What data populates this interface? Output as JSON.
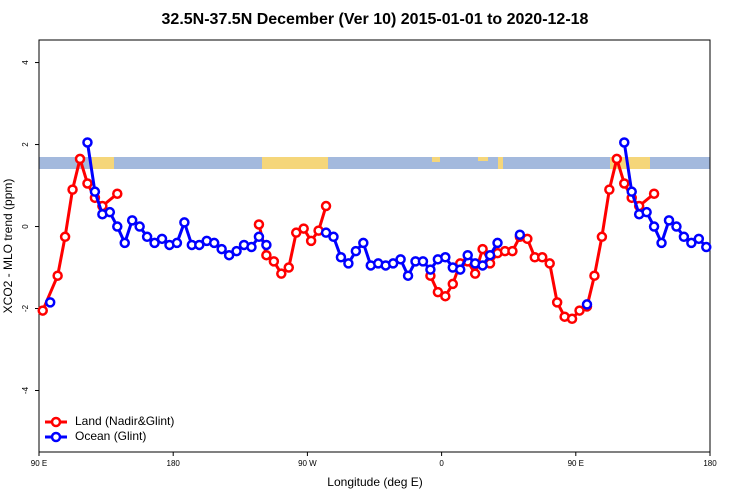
{
  "chart_data": {
    "type": "line",
    "title": "32.5N-37.5N December (Ver 10)   2015-01-01 to 2020-12-18",
    "x_label": "Longitude (deg E)",
    "y_label": "XCO2 - MLO trend (ppm)",
    "xlim": [
      90,
      540
    ],
    "ylim": [
      -5.5,
      4.55
    ],
    "xticks": [
      {
        "value": 90,
        "label": "90 E"
      },
      {
        "value": 180,
        "label": "180"
      },
      {
        "value": 270,
        "label": "90 W"
      },
      {
        "value": 360,
        "label": "0"
      },
      {
        "value": 450,
        "label": "90 E"
      },
      {
        "value": 540,
        "label": "180"
      }
    ],
    "yticks": [
      -4,
      -2,
      0,
      2,
      4
    ],
    "grid": false,
    "legend": "bottom-left",
    "series": [
      {
        "name": "Land (Nadir&Glint)",
        "color": "#ff0000",
        "x": [
          92.5,
          102.5,
          107.5,
          112.5,
          117.5,
          122.5,
          127.5,
          132.5,
          142.5,
          147.5,
          237.5,
          242.5,
          247.5,
          252.5,
          257.5,
          262.5,
          267.5,
          272.5,
          277.5,
          282.5,
          287.5,
          352.5,
          357.5,
          362.5,
          367.5,
          372.5,
          377.5,
          382.5,
          387.5,
          392.5,
          397.5,
          402.5,
          407.5,
          412.5,
          417.5,
          422.5,
          427.5,
          432.5,
          437.5,
          442.5,
          447.5,
          452.5,
          457.5,
          462.5,
          467.5,
          472.5,
          477.5,
          482.5,
          487.5,
          492.5,
          502.5
        ],
        "values": [
          -2.05,
          -1.2,
          -0.25,
          0.9,
          1.65,
          1.05,
          0.7,
          0.5,
          0.8,
          null,
          0.05,
          -0.7,
          -0.85,
          -1.15,
          -1.0,
          -0.15,
          -0.05,
          -0.35,
          -0.1,
          0.5,
          null,
          -1.2,
          -1.6,
          -1.7,
          -1.4,
          -0.9,
          -0.85,
          -1.15,
          -0.55,
          -0.9,
          -0.65,
          -0.6,
          -0.6,
          -0.25,
          -0.3,
          -0.75,
          -0.75,
          -0.9,
          -1.85,
          -2.2,
          -2.25,
          -2.05,
          -1.95,
          -1.2,
          -0.25,
          0.9,
          1.65,
          1.05,
          0.7,
          0.5,
          0.8
        ]
      },
      {
        "name": "Ocean (Glint)",
        "color": "#0000ff",
        "x": [
          97.5,
          102.5,
          122.5,
          127.5,
          132.5,
          137.5,
          142.5,
          147.5,
          152.5,
          157.5,
          162.5,
          167.5,
          172.5,
          177.5,
          182.5,
          187.5,
          192.5,
          197.5,
          202.5,
          207.5,
          212.5,
          217.5,
          222.5,
          227.5,
          232.5,
          237.5,
          242.5,
          247.5,
          282.5,
          287.5,
          292.5,
          297.5,
          302.5,
          307.5,
          312.5,
          317.5,
          322.5,
          327.5,
          332.5,
          337.5,
          342.5,
          347.5,
          352.5,
          357.5,
          362.5,
          367.5,
          372.5,
          377.5,
          382.5,
          387.5,
          392.5,
          397.5,
          402.5,
          412.5,
          417.5,
          457.5,
          462.5,
          482.5,
          487.5,
          492.5,
          497.5,
          502.5,
          507.5,
          512.5,
          517.5,
          522.5,
          527.5,
          532.5,
          537.5
        ],
        "values": [
          -1.85,
          null,
          2.05,
          0.85,
          0.3,
          0.35,
          0.0,
          -0.4,
          0.15,
          0.0,
          -0.25,
          -0.4,
          -0.3,
          -0.45,
          -0.4,
          0.1,
          -0.45,
          -0.45,
          -0.35,
          -0.4,
          -0.55,
          -0.7,
          -0.6,
          -0.45,
          -0.5,
          -0.25,
          -0.45,
          null,
          -0.15,
          -0.25,
          -0.75,
          -0.9,
          -0.6,
          -0.4,
          -0.95,
          -0.9,
          -0.95,
          -0.9,
          -0.8,
          -1.2,
          -0.85,
          -0.85,
          -1.05,
          -0.8,
          -0.75,
          -1.0,
          -1.05,
          -0.7,
          -0.9,
          -0.95,
          -0.7,
          -0.4,
          null,
          -0.2,
          null,
          -1.9,
          null,
          2.05,
          0.85,
          0.3,
          0.35,
          0.0,
          -0.4,
          0.15,
          0.0,
          -0.25,
          -0.4,
          -0.3,
          -0.5
        ]
      }
    ]
  }
}
